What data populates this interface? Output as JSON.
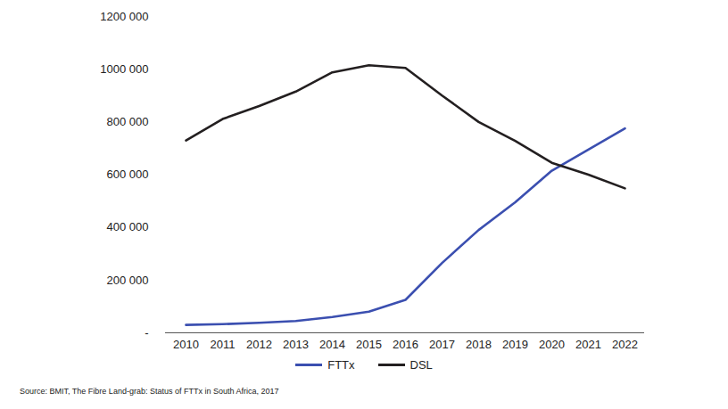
{
  "chart_data": {
    "type": "line",
    "caption": "Source: BMIT, The Fibre Land-grab: Status of FTTx in South Africa, 2017",
    "categories": [
      "2010",
      "2011",
      "2012",
      "2013",
      "2014",
      "2015",
      "2016",
      "2017",
      "2018",
      "2019",
      "2020",
      "2021",
      "2022"
    ],
    "series": [
      {
        "name": "FTTx",
        "color": "#3b4fb0",
        "values": [
          30000,
          33000,
          38000,
          45000,
          60000,
          80000,
          125000,
          265000,
          390000,
          495000,
          615000,
          695000,
          775000
        ]
      },
      {
        "name": "DSL",
        "color": "#231f20",
        "values": [
          730000,
          811000,
          860000,
          915000,
          988000,
          1015000,
          1005000,
          900000,
          800000,
          728000,
          645000,
          600000,
          548000
        ]
      }
    ],
    "ylim": [
      0,
      1200000
    ],
    "yticks": [
      {
        "value": 0,
        "label": "-"
      },
      {
        "value": 200000,
        "label": "200 000"
      },
      {
        "value": 400000,
        "label": "400 000"
      },
      {
        "value": 600000,
        "label": "600 000"
      },
      {
        "value": 800000,
        "label": "800 000"
      },
      {
        "value": 1000000,
        "label": "1000 000"
      },
      {
        "value": 1200000,
        "label": "1200 000"
      }
    ],
    "grid": false,
    "legend": "bottom"
  }
}
